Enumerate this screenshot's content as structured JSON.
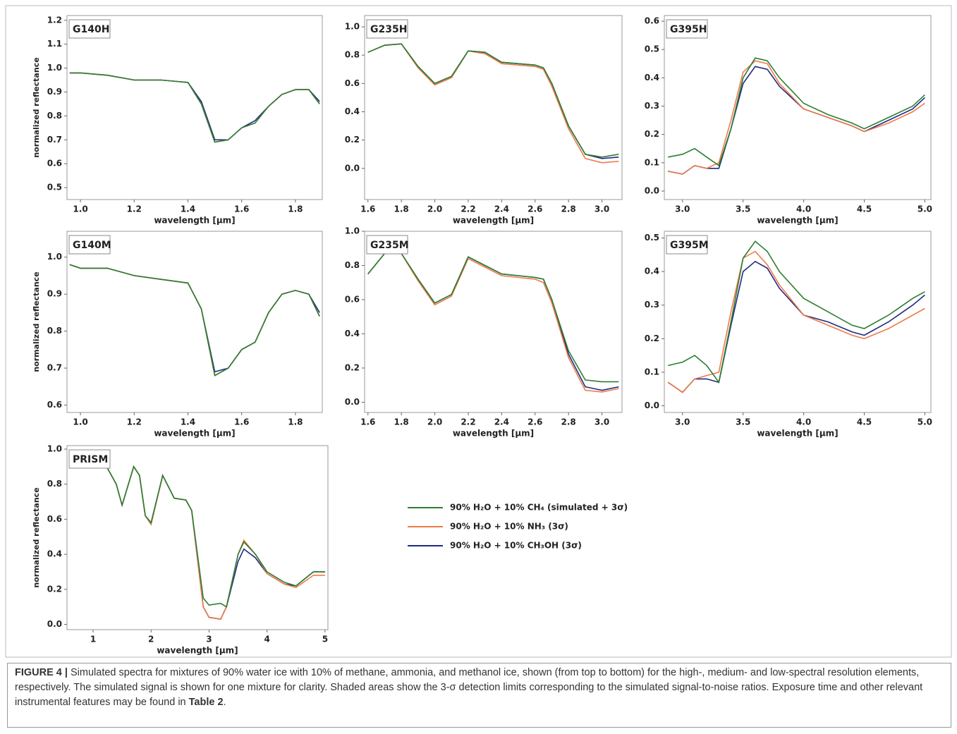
{
  "chart_data": [
    {
      "type": "line",
      "title": "G140H",
      "xlabel": "wavelength [μm]",
      "ylabel": "normalized reflectance",
      "xlim": [
        0.95,
        1.9
      ],
      "ylim": [
        0.45,
        1.22
      ],
      "xticks": [
        {
          "value": 1,
          "label": "1.0"
        },
        1.2,
        1.4,
        1.6,
        1.8
      ],
      "yticks": [
        0.5,
        0.6,
        0.7,
        0.8,
        0.9,
        {
          "value": 1,
          "label": "1.0"
        },
        1.1,
        1.2
      ],
      "x": [
        0.96,
        1.0,
        1.1,
        1.2,
        1.3,
        1.4,
        1.45,
        1.5,
        1.55,
        1.6,
        1.65,
        1.7,
        1.75,
        1.8,
        1.85,
        1.89
      ],
      "series": [
        {
          "color": "#1f2a80",
          "values": [
            0.98,
            0.98,
            0.97,
            0.95,
            0.95,
            0.94,
            0.86,
            0.7,
            0.7,
            0.75,
            0.78,
            0.84,
            0.89,
            0.91,
            0.91,
            0.86
          ]
        },
        {
          "color": "#f07a4a",
          "values": [
            0.98,
            0.98,
            0.97,
            0.95,
            0.95,
            0.94,
            0.85,
            0.69,
            0.7,
            0.75,
            0.77,
            0.84,
            0.89,
            0.91,
            0.91,
            0.85
          ]
        },
        {
          "color": "#2e7d32",
          "values": [
            0.98,
            0.98,
            0.97,
            0.95,
            0.95,
            0.94,
            0.85,
            0.69,
            0.7,
            0.75,
            0.77,
            0.84,
            0.89,
            0.91,
            0.91,
            0.85
          ]
        }
      ]
    },
    {
      "type": "line",
      "title": "G235H",
      "xlabel": "wavelength [μm]",
      "xlim": [
        1.58,
        3.12
      ],
      "ylim": [
        -0.22,
        1.08
      ],
      "xticks": [
        1.6,
        1.8,
        {
          "value": 2,
          "label": "2.0"
        },
        2.2,
        2.4,
        2.6,
        2.8,
        {
          "value": 3,
          "label": "3.0"
        }
      ],
      "yticks": [
        {
          "value": 0,
          "label": "0.0"
        },
        0.2,
        0.4,
        0.6,
        0.8,
        {
          "value": 1,
          "label": "1.0"
        }
      ],
      "x": [
        1.6,
        1.7,
        1.8,
        1.9,
        2.0,
        2.1,
        2.2,
        2.3,
        2.4,
        2.5,
        2.6,
        2.65,
        2.7,
        2.8,
        2.9,
        3.0,
        3.1
      ],
      "series": [
        {
          "color": "#1f2a80",
          "values": [
            0.82,
            0.87,
            0.88,
            0.72,
            0.6,
            0.65,
            0.83,
            0.82,
            0.75,
            0.74,
            0.73,
            0.71,
            0.6,
            0.3,
            0.1,
            0.07,
            0.08
          ]
        },
        {
          "color": "#f07a4a",
          "values": [
            0.82,
            0.87,
            0.88,
            0.71,
            0.59,
            0.64,
            0.83,
            0.81,
            0.74,
            0.73,
            0.72,
            0.7,
            0.58,
            0.28,
            0.07,
            0.04,
            0.05
          ]
        },
        {
          "color": "#2e7d32",
          "values": [
            0.82,
            0.87,
            0.88,
            0.72,
            0.6,
            0.65,
            0.83,
            0.82,
            0.75,
            0.74,
            0.73,
            0.71,
            0.6,
            0.3,
            0.1,
            0.08,
            0.1
          ]
        }
      ]
    },
    {
      "type": "line",
      "title": "G395H",
      "xlabel": "wavelength [μm]",
      "xlim": [
        2.85,
        5.05
      ],
      "ylim": [
        -0.03,
        0.62
      ],
      "xticks": [
        {
          "value": 3,
          "label": "3.0"
        },
        3.5,
        {
          "value": 4,
          "label": "4.0"
        },
        4.5,
        {
          "value": 5,
          "label": "5.0"
        }
      ],
      "yticks": [
        {
          "value": 0,
          "label": "0.0"
        },
        0.1,
        0.2,
        0.3,
        0.4,
        0.5,
        0.6
      ],
      "x": [
        2.88,
        3.0,
        3.1,
        3.2,
        3.3,
        3.4,
        3.5,
        3.6,
        3.7,
        3.8,
        4.0,
        4.2,
        4.4,
        4.5,
        4.7,
        4.9,
        5.0
      ],
      "series": [
        {
          "color": "#1f2a80",
          "values": [
            0.07,
            0.06,
            0.09,
            0.08,
            0.08,
            0.22,
            0.38,
            0.44,
            0.43,
            0.37,
            0.29,
            0.26,
            0.23,
            0.21,
            0.25,
            0.29,
            0.33
          ]
        },
        {
          "color": "#f07a4a",
          "values": [
            0.07,
            0.06,
            0.09,
            0.08,
            0.1,
            0.25,
            0.42,
            0.46,
            0.45,
            0.38,
            0.29,
            0.26,
            0.23,
            0.21,
            0.24,
            0.28,
            0.31
          ]
        },
        {
          "color": "#2e7d32",
          "values": [
            0.12,
            0.13,
            0.15,
            0.12,
            0.09,
            0.22,
            0.4,
            0.47,
            0.46,
            0.4,
            0.31,
            0.27,
            0.24,
            0.22,
            0.26,
            0.3,
            0.34
          ]
        }
      ]
    },
    {
      "type": "line",
      "title": "G140M",
      "xlabel": "wavelength [μm]",
      "ylabel": "normalized reflectance",
      "xlim": [
        0.95,
        1.9
      ],
      "ylim": [
        0.58,
        1.07
      ],
      "xticks": [
        {
          "value": 1,
          "label": "1.0"
        },
        1.2,
        1.4,
        1.6,
        1.8
      ],
      "yticks": [
        0.6,
        0.7,
        0.8,
        0.9,
        {
          "value": 1,
          "label": "1.0"
        }
      ],
      "x": [
        0.96,
        1.0,
        1.1,
        1.2,
        1.3,
        1.4,
        1.45,
        1.5,
        1.55,
        1.6,
        1.65,
        1.7,
        1.75,
        1.8,
        1.85,
        1.89
      ],
      "series": [
        {
          "color": "#1f2a80",
          "values": [
            0.98,
            0.97,
            0.97,
            0.95,
            0.94,
            0.93,
            0.86,
            0.69,
            0.7,
            0.75,
            0.77,
            0.85,
            0.9,
            0.91,
            0.9,
            0.85
          ]
        },
        {
          "color": "#f07a4a",
          "values": [
            0.98,
            0.97,
            0.97,
            0.95,
            0.94,
            0.93,
            0.86,
            0.68,
            0.7,
            0.75,
            0.77,
            0.85,
            0.9,
            0.91,
            0.9,
            0.84
          ]
        },
        {
          "color": "#2e7d32",
          "values": [
            0.98,
            0.97,
            0.97,
            0.95,
            0.94,
            0.93,
            0.86,
            0.68,
            0.7,
            0.75,
            0.77,
            0.85,
            0.9,
            0.91,
            0.9,
            0.84
          ]
        }
      ]
    },
    {
      "type": "line",
      "title": "G235M",
      "xlabel": "wavelength [μm]",
      "xlim": [
        1.58,
        3.12
      ],
      "ylim": [
        -0.06,
        1.0
      ],
      "xticks": [
        1.6,
        1.8,
        {
          "value": 2,
          "label": "2.0"
        },
        2.2,
        2.4,
        2.6,
        2.8,
        {
          "value": 3,
          "label": "3.0"
        }
      ],
      "yticks": [
        {
          "value": 0,
          "label": "0.0"
        },
        0.2,
        0.4,
        0.6,
        0.8,
        {
          "value": 1,
          "label": "1.0"
        }
      ],
      "x": [
        1.6,
        1.7,
        1.8,
        1.9,
        2.0,
        2.1,
        2.2,
        2.3,
        2.4,
        2.5,
        2.6,
        2.65,
        2.7,
        2.8,
        2.9,
        3.0,
        3.1
      ],
      "series": [
        {
          "color": "#1f2a80",
          "values": [
            0.75,
            0.87,
            0.87,
            0.72,
            0.58,
            0.63,
            0.85,
            0.8,
            0.75,
            0.74,
            0.73,
            0.72,
            0.6,
            0.28,
            0.09,
            0.07,
            0.09
          ]
        },
        {
          "color": "#f07a4a",
          "values": [
            0.75,
            0.87,
            0.87,
            0.71,
            0.57,
            0.62,
            0.84,
            0.79,
            0.74,
            0.73,
            0.72,
            0.7,
            0.58,
            0.26,
            0.07,
            0.06,
            0.08
          ]
        },
        {
          "color": "#2e7d32",
          "values": [
            0.75,
            0.87,
            0.87,
            0.72,
            0.58,
            0.63,
            0.85,
            0.8,
            0.75,
            0.74,
            0.73,
            0.72,
            0.6,
            0.3,
            0.13,
            0.12,
            0.12
          ]
        }
      ]
    },
    {
      "type": "line",
      "title": "G395M",
      "xlabel": "wavelength [μm]",
      "xlim": [
        2.85,
        5.05
      ],
      "ylim": [
        -0.02,
        0.52
      ],
      "xticks": [
        {
          "value": 3,
          "label": "3.0"
        },
        3.5,
        {
          "value": 4,
          "label": "4.0"
        },
        4.5,
        {
          "value": 5,
          "label": "5.0"
        }
      ],
      "yticks": [
        {
          "value": 0,
          "label": "0.0"
        },
        0.1,
        0.2,
        0.3,
        0.4,
        0.5
      ],
      "x": [
        2.88,
        3.0,
        3.1,
        3.2,
        3.3,
        3.4,
        3.5,
        3.6,
        3.7,
        3.8,
        4.0,
        4.2,
        4.4,
        4.5,
        4.7,
        4.9,
        5.0
      ],
      "series": [
        {
          "color": "#1f2a80",
          "values": [
            0.07,
            0.04,
            0.08,
            0.08,
            0.07,
            0.24,
            0.4,
            0.43,
            0.41,
            0.35,
            0.27,
            0.25,
            0.22,
            0.21,
            0.25,
            0.3,
            0.33
          ]
        },
        {
          "color": "#f07a4a",
          "values": [
            0.07,
            0.04,
            0.08,
            0.09,
            0.1,
            0.28,
            0.44,
            0.46,
            0.42,
            0.36,
            0.27,
            0.24,
            0.21,
            0.2,
            0.23,
            0.27,
            0.29
          ]
        },
        {
          "color": "#2e7d32",
          "values": [
            0.12,
            0.13,
            0.15,
            0.12,
            0.07,
            0.25,
            0.44,
            0.49,
            0.46,
            0.4,
            0.32,
            0.28,
            0.24,
            0.23,
            0.27,
            0.32,
            0.34
          ]
        }
      ]
    },
    {
      "type": "line",
      "title": "PRISM",
      "xlabel": "wavelength [μm]",
      "ylabel": "normalized reflectance",
      "xlim": [
        0.55,
        5.05
      ],
      "ylim": [
        -0.03,
        1.02
      ],
      "xticks": [
        1,
        2,
        3,
        4,
        5
      ],
      "yticks": [
        {
          "value": 0,
          "label": "0.0"
        },
        0.2,
        0.4,
        0.6,
        0.8,
        {
          "value": 1,
          "label": "1.0"
        }
      ],
      "x": [
        0.6,
        0.8,
        1.0,
        1.2,
        1.4,
        1.5,
        1.7,
        1.8,
        1.9,
        2.0,
        2.2,
        2.4,
        2.6,
        2.7,
        2.9,
        3.0,
        3.2,
        3.3,
        3.5,
        3.6,
        3.8,
        4.0,
        4.3,
        4.5,
        4.8,
        5.0
      ],
      "series": [
        {
          "color": "#1f2a80",
          "values": [
            0.95,
            0.97,
            0.96,
            0.92,
            0.8,
            0.68,
            0.9,
            0.85,
            0.62,
            0.58,
            0.85,
            0.72,
            0.71,
            0.65,
            0.1,
            0.04,
            0.03,
            0.1,
            0.36,
            0.43,
            0.38,
            0.29,
            0.23,
            0.22,
            0.3,
            0.3
          ]
        },
        {
          "color": "#f07a4a",
          "values": [
            0.95,
            0.97,
            0.96,
            0.92,
            0.8,
            0.68,
            0.9,
            0.85,
            0.62,
            0.57,
            0.85,
            0.72,
            0.71,
            0.65,
            0.1,
            0.04,
            0.03,
            0.1,
            0.4,
            0.48,
            0.4,
            0.29,
            0.23,
            0.21,
            0.28,
            0.28
          ]
        },
        {
          "color": "#2e7d32",
          "values": [
            0.95,
            0.97,
            0.96,
            0.92,
            0.8,
            0.68,
            0.9,
            0.85,
            0.62,
            0.58,
            0.85,
            0.72,
            0.71,
            0.65,
            0.15,
            0.11,
            0.12,
            0.1,
            0.4,
            0.47,
            0.4,
            0.3,
            0.24,
            0.22,
            0.3,
            0.3
          ]
        }
      ]
    }
  ],
  "legend": [
    {
      "name": "90% H₂O + 10% CH₄ (simulated + 3σ)",
      "color": "#2e7d32"
    },
    {
      "name": "90% H₂O + 10% NH₃ (3σ)",
      "color": "#f07a4a"
    },
    {
      "name": "90% H₂O + 10% CH₃OH (3σ)",
      "color": "#1f2a80"
    }
  ],
  "caption": {
    "label": "FIGURE 4 |",
    "text": " Simulated spectra for mixtures of 90% water ice with 10% of methane, ammonia, and methanol ice, shown (from top to bottom) for the high-, medium- and low-spectral resolution elements, respectively. The simulated signal is shown for one mixture for clarity. Shaded areas show the 3-σ detection limits corresponding to the simulated signal-to-noise ratios. Exposure time and other relevant instrumental features may be found in ",
    "ref": "Table 2",
    "end": "."
  }
}
